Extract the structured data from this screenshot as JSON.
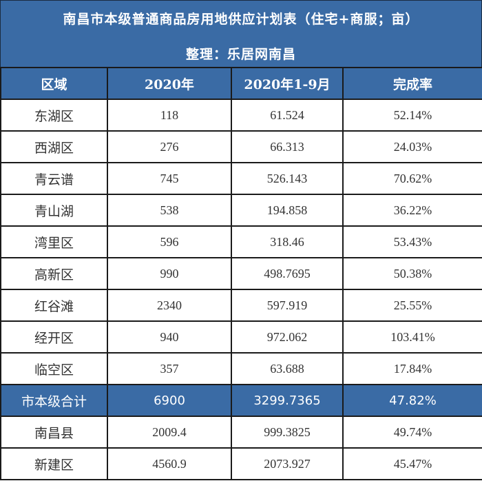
{
  "header": {
    "title": "南昌市本级普通商品房用地供应计划表（住宅+商服；亩）",
    "subtitle": "整理：乐居网南昌"
  },
  "table": {
    "columns": [
      "区域",
      "2020年",
      "2020年1-9月",
      "完成率"
    ],
    "rows": [
      {
        "region": "东湖区",
        "plan_2020": "118",
        "done_1_9": "61.524",
        "rate": "52.14%"
      },
      {
        "region": "西湖区",
        "plan_2020": "276",
        "done_1_9": "66.313",
        "rate": "24.03%"
      },
      {
        "region": "青云谱",
        "plan_2020": "745",
        "done_1_9": "526.143",
        "rate": "70.62%"
      },
      {
        "region": "青山湖",
        "plan_2020": "538",
        "done_1_9": "194.858",
        "rate": "36.22%"
      },
      {
        "region": "湾里区",
        "plan_2020": "596",
        "done_1_9": "318.46",
        "rate": "53.43%"
      },
      {
        "region": "高新区",
        "plan_2020": "990",
        "done_1_9": "498.7695",
        "rate": "50.38%"
      },
      {
        "region": "红谷滩",
        "plan_2020": "2340",
        "done_1_9": "597.919",
        "rate": "25.55%"
      },
      {
        "region": "经开区",
        "plan_2020": "940",
        "done_1_9": "972.062",
        "rate": "103.41%"
      },
      {
        "region": "临空区",
        "plan_2020": "357",
        "done_1_9": "63.688",
        "rate": "17.84%"
      },
      {
        "region": "市本级合计",
        "plan_2020": "6900",
        "done_1_9": "3299.7365",
        "rate": "47.82%",
        "highlight": true
      },
      {
        "region": "南昌县",
        "plan_2020": "2009.4",
        "done_1_9": "999.3825",
        "rate": "49.74%"
      },
      {
        "region": "新建区",
        "plan_2020": "4560.9",
        "done_1_9": "2073.927",
        "rate": "45.47%"
      }
    ]
  },
  "colors": {
    "header_bg": "#3a6ba5",
    "header_text": "#ffffff",
    "border": "#1a1a1a",
    "body_text": "#333333"
  }
}
